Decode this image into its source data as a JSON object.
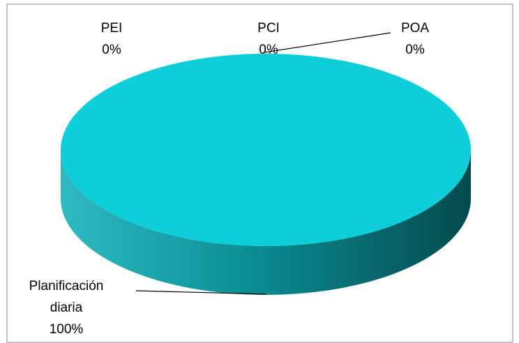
{
  "chart_data": {
    "type": "pie",
    "three_d": true,
    "categories": [
      "PEI",
      "PCI",
      "POA",
      "Planificación diaria"
    ],
    "values": [
      0,
      0,
      0,
      100
    ],
    "value_labels": [
      "0%",
      "0%",
      "0%",
      "100%"
    ],
    "colors": [
      "#0ecfd9",
      "#0ecfd9",
      "#0ecfd9",
      "#0ecfd9"
    ]
  }
}
